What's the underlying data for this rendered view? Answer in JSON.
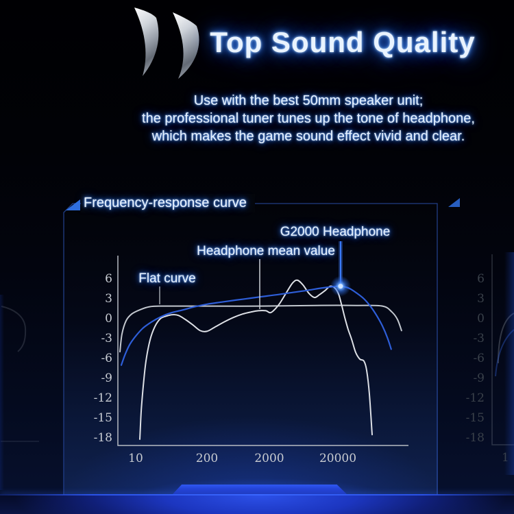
{
  "header": {
    "logo_icon": "double-crescent-soundwave",
    "title": "Top Sound Quality",
    "subtitle_lines": [
      "Use with the best 50mm speaker unit;",
      "the professional tuner tunes up the tone of headphone,",
      "which makes the game sound effect vivid and clear."
    ]
  },
  "panel": {
    "header_label": "Frequency-response curve",
    "accent_color": "#2f6fe0"
  },
  "dim_right_panel": {
    "x_tick_fragment": "1"
  },
  "chart_data": {
    "type": "line",
    "title": "Frequency-response curve",
    "grid": false,
    "legend_position": "annotations-on-chart",
    "x_axis": {
      "scale": "log",
      "unit": "Hz",
      "tick_labels": [
        "10",
        "200",
        "2000",
        "20000"
      ],
      "tick_values": [
        10,
        200,
        2000,
        20000
      ]
    },
    "y_axis": {
      "unit": "dB",
      "tick_labels": [
        "6",
        "3",
        "0",
        "-3",
        "-6",
        "-9",
        "-12",
        "-15",
        "-18"
      ],
      "tick_values": [
        6,
        3,
        0,
        -3,
        -6,
        -9,
        -12,
        -15,
        -18
      ],
      "range": [
        -19.5,
        8.5
      ]
    },
    "annotations": [
      {
        "label": "Flat curve",
        "points_to": {
          "hz": 27,
          "db": 1.9
        }
      },
      {
        "label": "Headphone mean value",
        "points_to": {
          "hz": 1390,
          "db": 1.2
        }
      },
      {
        "label": "G2000 Headphone",
        "points_to": {
          "hz": 21900,
          "db": 4.9
        }
      }
    ],
    "series": [
      {
        "name": "Flat curve",
        "color": "#c3c8cf",
        "width": 2,
        "points": [
          [
            5.3,
            -5.0
          ],
          [
            5.75,
            -2.3
          ],
          [
            6.8,
            -0.3
          ],
          [
            8.5,
            0.7
          ],
          [
            11.6,
            1.3
          ],
          [
            17.8,
            1.8
          ],
          [
            33.5,
            1.9
          ],
          [
            189,
            1.9
          ],
          [
            1480,
            1.9
          ],
          [
            9360,
            2.0
          ],
          [
            37200,
            2.0
          ],
          [
            89300,
            1.9
          ],
          [
            123000,
            1.0
          ],
          [
            148000,
            -0.1
          ],
          [
            170000,
            -1.8
          ]
        ]
      },
      {
        "name": "Headphone mean value",
        "color": "#dde0e6",
        "width": 2,
        "points": [
          [
            11.9,
            -18.2
          ],
          [
            12.6,
            -14.0
          ],
          [
            13.7,
            -10.3
          ],
          [
            15.4,
            -6.4
          ],
          [
            18.3,
            -3.2
          ],
          [
            22.4,
            -1.2
          ],
          [
            28.2,
            0.0
          ],
          [
            36.6,
            0.4
          ],
          [
            46,
            0.6
          ],
          [
            60,
            0.5
          ],
          [
            80,
            -0.1
          ],
          [
            109,
            -0.9
          ],
          [
            150,
            -1.8
          ],
          [
            200,
            -1.9
          ],
          [
            264,
            -1.3
          ],
          [
            377,
            -0.5
          ],
          [
            537,
            0.2
          ],
          [
            746,
            0.7
          ],
          [
            1010,
            1.0
          ],
          [
            1330,
            1.2
          ],
          [
            1760,
            1.2
          ],
          [
            2050,
            0.9
          ],
          [
            2350,
            1.3
          ],
          [
            2830,
            2.3
          ],
          [
            3480,
            3.8
          ],
          [
            4380,
            5.4
          ],
          [
            5140,
            5.8
          ],
          [
            6180,
            5.1
          ],
          [
            7600,
            3.8
          ],
          [
            9140,
            3.2
          ],
          [
            10700,
            3.6
          ],
          [
            13200,
            4.3
          ],
          [
            15500,
            4.9
          ],
          [
            18200,
            4.6
          ],
          [
            20500,
            3.7
          ],
          [
            22400,
            2.3
          ],
          [
            25200,
            0.2
          ],
          [
            28200,
            -1.6
          ],
          [
            31700,
            -3.1
          ],
          [
            36400,
            -5.1
          ],
          [
            41800,
            -6.1
          ],
          [
            48000,
            -6.4
          ],
          [
            52600,
            -7.8
          ],
          [
            57700,
            -11.4
          ],
          [
            63200,
            -17.5
          ]
        ]
      },
      {
        "name": "G2000 Headphone",
        "color": "#2e5ed8",
        "width": 2.2,
        "highlight_point": [
          21900,
          4.9
        ],
        "points": [
          [
            5.6,
            -7.0
          ],
          [
            6.6,
            -5.3
          ],
          [
            8.0,
            -3.8
          ],
          [
            10.3,
            -2.5
          ],
          [
            13.7,
            -1.4
          ],
          [
            19.4,
            -0.5
          ],
          [
            29,
            0.3
          ],
          [
            44.7,
            0.9
          ],
          [
            70.9,
            1.3
          ],
          [
            119,
            1.8
          ],
          [
            205,
            2.2
          ],
          [
            340,
            2.5
          ],
          [
            579,
            2.8
          ],
          [
            1010,
            3.1
          ],
          [
            1760,
            3.4
          ],
          [
            2960,
            3.7
          ],
          [
            4690,
            4.0
          ],
          [
            7430,
            4.3
          ],
          [
            11200,
            4.6
          ],
          [
            15900,
            4.8
          ],
          [
            21900,
            4.9
          ],
          [
            28900,
            4.6
          ],
          [
            37200,
            3.9
          ],
          [
            48000,
            3.0
          ],
          [
            60400,
            1.8
          ],
          [
            74300,
            0.4
          ],
          [
            89300,
            -1.1
          ],
          [
            105000,
            -2.8
          ],
          [
            120000,
            -4.6
          ]
        ]
      }
    ]
  }
}
